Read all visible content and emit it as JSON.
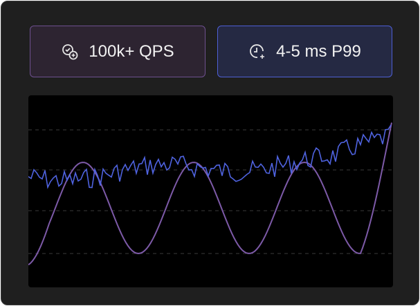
{
  "badges": [
    {
      "label": "100k+ QPS"
    },
    {
      "label": "4-5 ms P99"
    }
  ]
}
